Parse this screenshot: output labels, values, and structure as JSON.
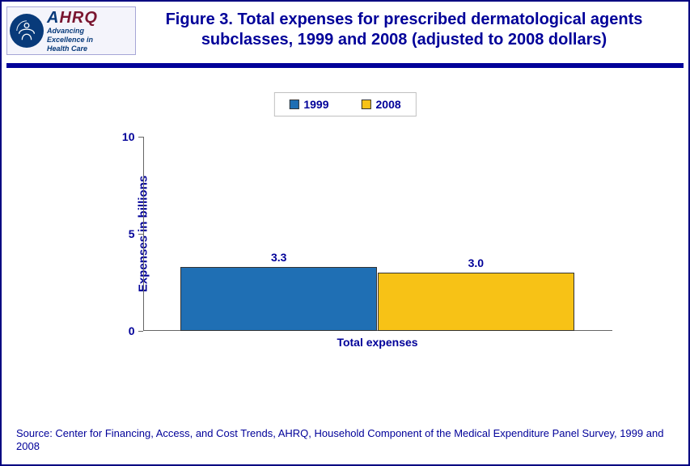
{
  "logo": {
    "brand_html_parts": {
      "first": "A",
      "rest": "HRQ"
    },
    "tag1": "Advancing",
    "tag2": "Excellence in",
    "tag3": "Health Care",
    "seal_bg": "#083a7a",
    "brand_color_first": "#083a7a",
    "brand_color_rest": "#7a1630"
  },
  "title": "Figure 3. Total expenses for prescribed dermatological agents subclasses, 1999 and 2008 (adjusted to 2008 dollars)",
  "hr_color": "#000099",
  "chart": {
    "type": "bar",
    "y_axis_title": "Expenses  in billions",
    "x_category_label": "Total expenses",
    "ylim": [
      0,
      10
    ],
    "yticks": [
      0,
      5,
      10
    ],
    "legend": [
      {
        "label": "1999",
        "color": "#1f6fb4"
      },
      {
        "label": "2008",
        "color": "#f7c216"
      }
    ],
    "series": [
      {
        "name": "1999",
        "value": 3.3,
        "display": "3.3",
        "color": "#1f6fb4"
      },
      {
        "name": "2008",
        "value": 3.0,
        "display": "3.0",
        "color": "#f7c216"
      }
    ],
    "text_color": "#000099",
    "label_fontsize": 14,
    "title_fontsize": 20,
    "axis_color": "#666666",
    "bar_border": "#333333",
    "bar_rel_width": 0.42,
    "bar_group_center": 0.5,
    "background_color": "#ffffff"
  },
  "source": "Source: Center for Financing, Access, and Cost Trends, AHRQ, Household Component of the Medical Expenditure Panel Survey, 1999 and 2008"
}
